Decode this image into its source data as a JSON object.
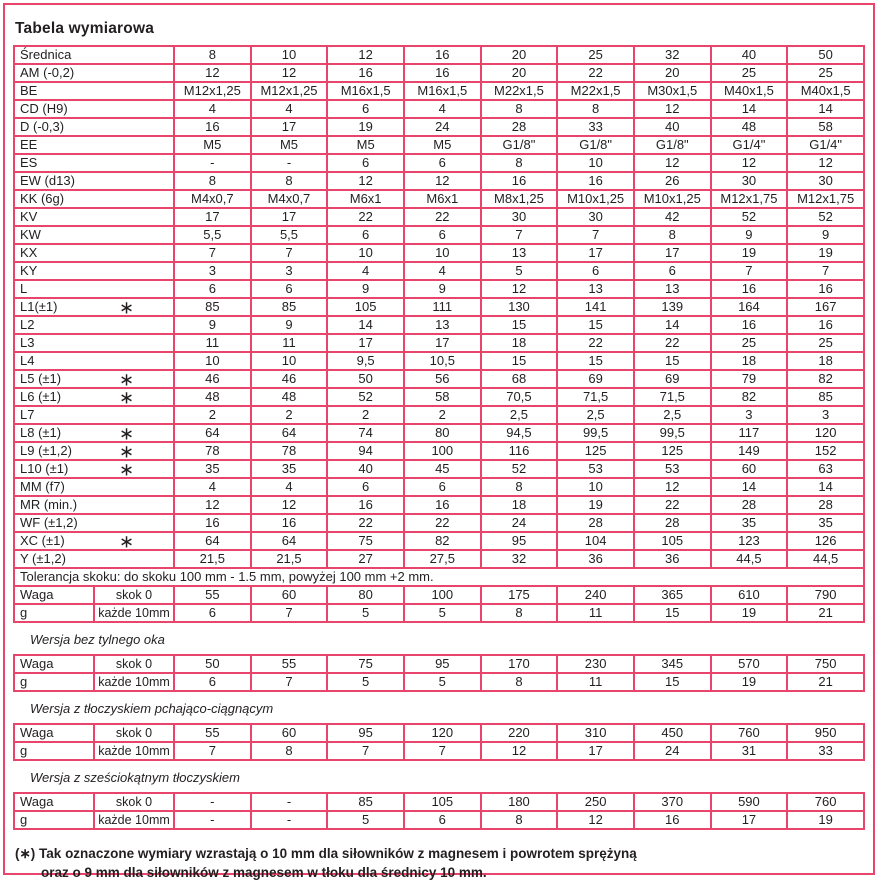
{
  "title": "Tabela wymiarowa",
  "star_symbol": "∗",
  "colors": {
    "border": "#e9446b",
    "text": "#231f20",
    "background": "#ffffff"
  },
  "main_table": {
    "rows": [
      {
        "label": "Średnica",
        "star": false,
        "values": [
          "8",
          "10",
          "12",
          "16",
          "20",
          "25",
          "32",
          "40",
          "50"
        ]
      },
      {
        "label": "AM (-0,2)",
        "star": false,
        "values": [
          "12",
          "12",
          "16",
          "16",
          "20",
          "22",
          "20",
          "25",
          "25"
        ]
      },
      {
        "label": "BE",
        "star": false,
        "values": [
          "M12x1,25",
          "M12x1,25",
          "M16x1,5",
          "M16x1,5",
          "M22x1,5",
          "M22x1,5",
          "M30x1,5",
          "M40x1,5",
          "M40x1,5"
        ]
      },
      {
        "label": "CD (H9)",
        "star": false,
        "values": [
          "4",
          "4",
          "6",
          "4",
          "8",
          "8",
          "12",
          "14",
          "14"
        ]
      },
      {
        "label": "D (-0,3)",
        "star": false,
        "values": [
          "16",
          "17",
          "19",
          "24",
          "28",
          "33",
          "40",
          "48",
          "58"
        ]
      },
      {
        "label": "EE",
        "star": false,
        "values": [
          "M5",
          "M5",
          "M5",
          "M5",
          "G1/8\"",
          "G1/8\"",
          "G1/8\"",
          "G1/4\"",
          "G1/4\""
        ]
      },
      {
        "label": "ES",
        "star": false,
        "values": [
          "-",
          "-",
          "6",
          "6",
          "8",
          "10",
          "12",
          "12",
          "12"
        ]
      },
      {
        "label": "EW (d13)",
        "star": false,
        "values": [
          "8",
          "8",
          "12",
          "12",
          "16",
          "16",
          "26",
          "30",
          "30"
        ]
      },
      {
        "label": "KK (6g)",
        "star": false,
        "values": [
          "M4x0,7",
          "M4x0,7",
          "M6x1",
          "M6x1",
          "M8x1,25",
          "M10x1,25",
          "M10x1,25",
          "M12x1,75",
          "M12x1,75"
        ]
      },
      {
        "label": "KV",
        "star": false,
        "values": [
          "17",
          "17",
          "22",
          "22",
          "30",
          "30",
          "42",
          "52",
          "52"
        ]
      },
      {
        "label": "KW",
        "star": false,
        "values": [
          "5,5",
          "5,5",
          "6",
          "6",
          "7",
          "7",
          "8",
          "9",
          "9"
        ]
      },
      {
        "label": "KX",
        "star": false,
        "values": [
          "7",
          "7",
          "10",
          "10",
          "13",
          "17",
          "17",
          "19",
          "19"
        ]
      },
      {
        "label": "KY",
        "star": false,
        "values": [
          "3",
          "3",
          "4",
          "4",
          "5",
          "6",
          "6",
          "7",
          "7"
        ]
      },
      {
        "label": "L",
        "star": false,
        "values": [
          "6",
          "6",
          "9",
          "9",
          "12",
          "13",
          "13",
          "16",
          "16"
        ]
      },
      {
        "label": "L1(±1)",
        "star": true,
        "values": [
          "85",
          "85",
          "105",
          "111",
          "130",
          "141",
          "139",
          "164",
          "167"
        ]
      },
      {
        "label": "L2",
        "star": false,
        "values": [
          "9",
          "9",
          "14",
          "13",
          "15",
          "15",
          "14",
          "16",
          "16"
        ]
      },
      {
        "label": "L3",
        "star": false,
        "values": [
          "11",
          "11",
          "17",
          "17",
          "18",
          "22",
          "22",
          "25",
          "25"
        ]
      },
      {
        "label": "L4",
        "star": false,
        "values": [
          "10",
          "10",
          "9,5",
          "10,5",
          "15",
          "15",
          "15",
          "18",
          "18"
        ]
      },
      {
        "label": "L5 (±1)",
        "star": true,
        "values": [
          "46",
          "46",
          "50",
          "56",
          "68",
          "69",
          "69",
          "79",
          "82"
        ]
      },
      {
        "label": "L6 (±1)",
        "star": true,
        "values": [
          "48",
          "48",
          "52",
          "58",
          "70,5",
          "71,5",
          "71,5",
          "82",
          "85"
        ]
      },
      {
        "label": "L7",
        "star": false,
        "values": [
          "2",
          "2",
          "2",
          "2",
          "2,5",
          "2,5",
          "2,5",
          "3",
          "3"
        ]
      },
      {
        "label": "L8 (±1)",
        "star": true,
        "values": [
          "64",
          "64",
          "74",
          "80",
          "94,5",
          "99,5",
          "99,5",
          "117",
          "120"
        ]
      },
      {
        "label": "L9 (±1,2)",
        "star": true,
        "values": [
          "78",
          "78",
          "94",
          "100",
          "116",
          "125",
          "125",
          "149",
          "152"
        ]
      },
      {
        "label": "L10 (±1)",
        "star": true,
        "values": [
          "35",
          "35",
          "40",
          "45",
          "52",
          "53",
          "53",
          "60",
          "63"
        ]
      },
      {
        "label": "MM (f7)",
        "star": false,
        "values": [
          "4",
          "4",
          "6",
          "6",
          "8",
          "10",
          "12",
          "14",
          "14"
        ]
      },
      {
        "label": "MR (min.)",
        "star": false,
        "values": [
          "12",
          "12",
          "16",
          "16",
          "18",
          "19",
          "22",
          "28",
          "28"
        ]
      },
      {
        "label": "WF (±1,2)",
        "star": false,
        "values": [
          "16",
          "16",
          "22",
          "22",
          "24",
          "28",
          "28",
          "35",
          "35"
        ]
      },
      {
        "label": "XC (±1)",
        "star": true,
        "values": [
          "64",
          "64",
          "75",
          "82",
          "95",
          "104",
          "105",
          "123",
          "126"
        ]
      },
      {
        "label": "Y (±1,2)",
        "star": false,
        "values": [
          "21,5",
          "21,5",
          "27",
          "27,5",
          "32",
          "36",
          "36",
          "44,5",
          "44,5"
        ]
      }
    ],
    "tolerance_note": "Tolerancja skoku: do skoku 100 mm - 1.5 mm, powyżej 100 mm +2 mm.",
    "weight": {
      "row1_label": "Waga",
      "row1_sub": "skok 0",
      "row1_values": [
        "55",
        "60",
        "80",
        "100",
        "175",
        "240",
        "365",
        "610",
        "790"
      ],
      "row2_label": "g",
      "row2_sub": "każde 10mm",
      "row2_values": [
        "6",
        "7",
        "5",
        "5",
        "8",
        "11",
        "15",
        "19",
        "21"
      ]
    }
  },
  "sections": [
    {
      "heading": "Wersja bez tylnego oka",
      "weight": {
        "row1_label": "Waga",
        "row1_sub": "skok 0",
        "row1_values": [
          "50",
          "55",
          "75",
          "95",
          "170",
          "230",
          "345",
          "570",
          "750"
        ],
        "row2_label": "g",
        "row2_sub": "każde 10mm",
        "row2_values": [
          "6",
          "7",
          "5",
          "5",
          "8",
          "11",
          "15",
          "19",
          "21"
        ]
      }
    },
    {
      "heading": "Wersja z tłoczyskiem pchająco-ciągnącym",
      "weight": {
        "row1_label": "Waga",
        "row1_sub": "skok 0",
        "row1_values": [
          "55",
          "60",
          "95",
          "120",
          "220",
          "310",
          "450",
          "760",
          "950"
        ],
        "row2_label": "g",
        "row2_sub": "każde 10mm",
        "row2_values": [
          "7",
          "8",
          "7",
          "7",
          "12",
          "17",
          "24",
          "31",
          "33"
        ]
      }
    },
    {
      "heading": "Wersja z sześciokątnym tłoczyskiem",
      "weight": {
        "row1_label": "Waga",
        "row1_sub": "skok 0",
        "row1_values": [
          "-",
          "-",
          "85",
          "105",
          "180",
          "250",
          "370",
          "590",
          "760"
        ],
        "row2_label": "g",
        "row2_sub": "każde 10mm",
        "row2_values": [
          "-",
          "-",
          "5",
          "6",
          "8",
          "12",
          "16",
          "17",
          "19"
        ]
      }
    }
  ],
  "footnote": {
    "line1": "(∗) Tak oznaczone wymiary wzrastają o 10 mm dla siłowników z magnesem i powrotem sprężyną",
    "line2": "oraz o 9 mm dla siłowników z magnesem w tłoku dla średnicy 10 mm."
  }
}
